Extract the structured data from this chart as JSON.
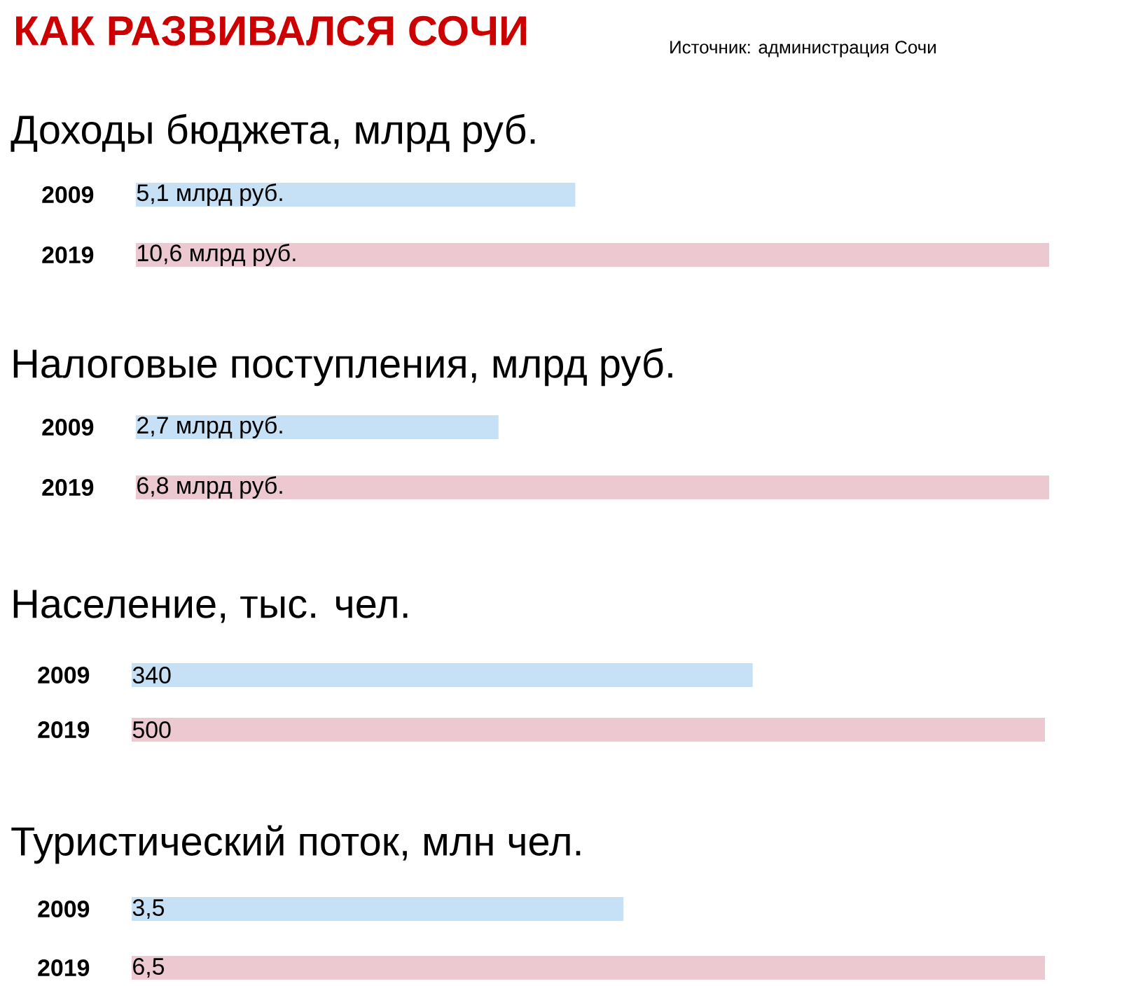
{
  "chart_data": [
    {
      "type": "bar",
      "orientation": "horizontal",
      "title": "КАК РАЗВИВАЛСЯ СОЧИ",
      "subtitle": "Доходы бюджета, млрд руб.",
      "annotations": [
        "Источник: администрация Сочи"
      ],
      "categories": [
        "2009",
        "2019"
      ],
      "values": [
        5.1,
        10.6
      ],
      "colors": [
        "#c6e1f6",
        "#ecc9d1"
      ],
      "value_labels": [
        "5,1 млрд руб.",
        "10,6 млрд руб."
      ]
    },
    {
      "type": "bar",
      "orientation": "horizontal",
      "title": "Налоговые поступления, млрд руб.",
      "categories": [
        "2009",
        "2019"
      ],
      "values": [
        2.7,
        6.8
      ],
      "colors": [
        "#c6e1f6",
        "#ecc9d1"
      ],
      "value_labels": [
        "2,7 млрд руб.",
        "6,8 млрд руб."
      ]
    },
    {
      "type": "bar",
      "orientation": "horizontal",
      "title": "Население, тыс. чел.",
      "categories": [
        "2009",
        "2019"
      ],
      "values": [
        340,
        500
      ],
      "colors": [
        "#c6e1f6",
        "#ecc9d1"
      ],
      "value_labels": [
        "340",
        "500"
      ]
    },
    {
      "type": "bar",
      "orientation": "horizontal",
      "title": "Туристический поток, млн чел.",
      "categories": [
        "2009",
        "2019"
      ],
      "values": [
        3.5,
        6.5
      ],
      "colors": [
        "#c6e1f6",
        "#ecc9d1"
      ],
      "value_labels": [
        "3,5",
        "6,5"
      ]
    }
  ]
}
